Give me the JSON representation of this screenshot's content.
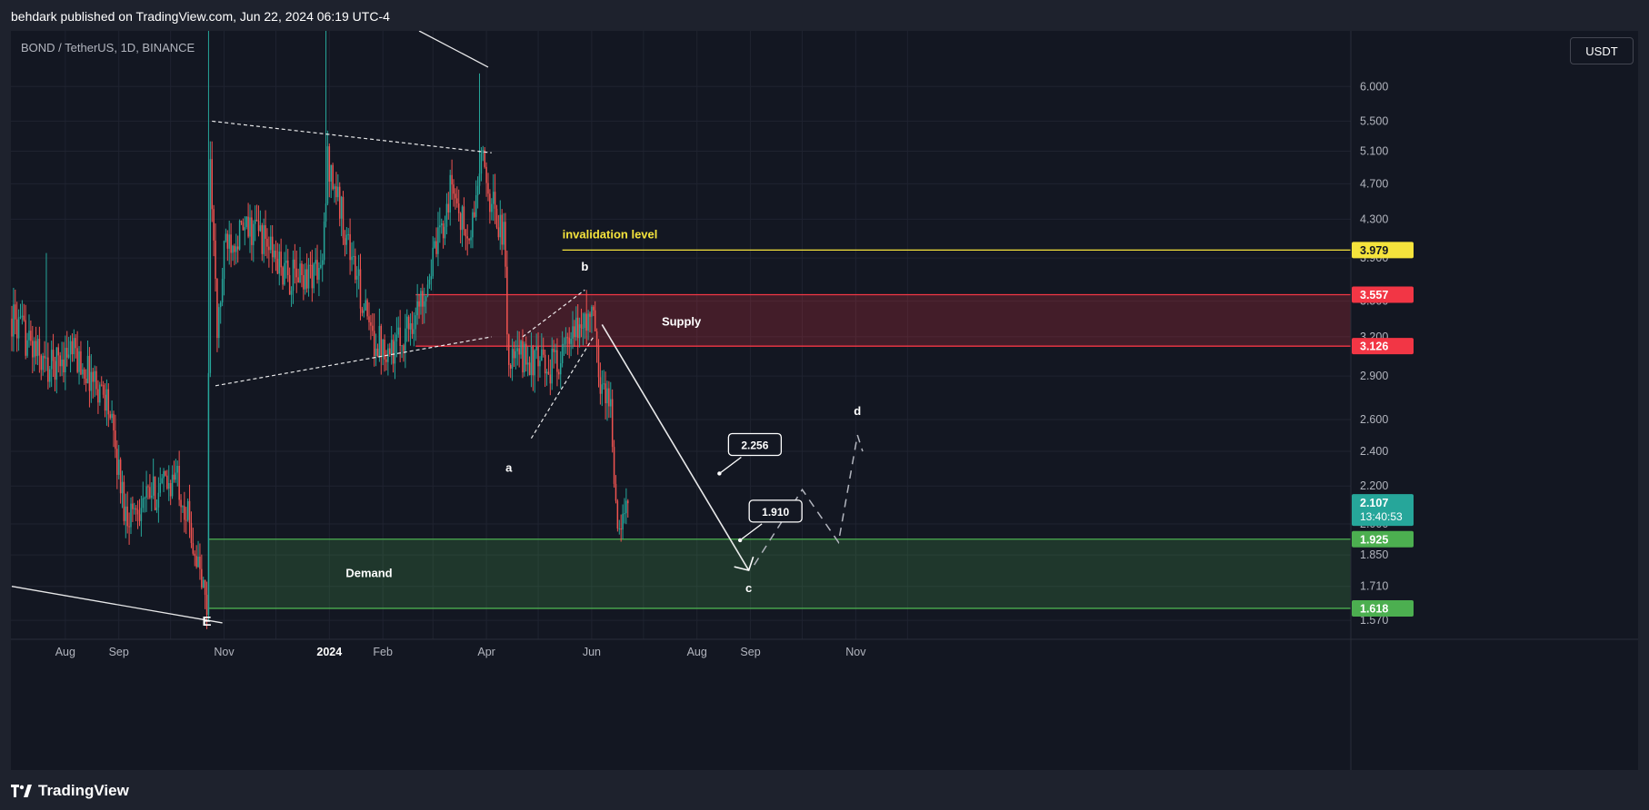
{
  "header": {
    "published": "behdark published on TradingView.com, Jun 22, 2024 06:19 UTC-4"
  },
  "chart_header": {
    "symbol": "BOND / TetherUS, 1D, BINANCE",
    "currency": "USDT"
  },
  "footer": {
    "brand": "TradingView"
  },
  "chart_data": {
    "type": "candlestick",
    "symbol": "BOND / TetherUS",
    "interval": "1D",
    "exchange": "BINANCE",
    "y_scale": "log",
    "ylim": [
      1.47,
      6.9
    ],
    "x_tick_labels": [
      "Aug",
      "Sep",
      "Nov",
      "2024",
      "Feb",
      "Apr",
      "Jun",
      "Aug",
      "Sep",
      "Nov"
    ],
    "y_tick_labels": [
      6.0,
      5.5,
      5.1,
      4.7,
      4.3,
      3.9,
      3.5,
      3.2,
      2.9,
      2.6,
      2.4,
      2.2,
      2.0,
      1.85,
      1.71,
      1.57
    ],
    "price_path_anchors": [
      {
        "date": "2023-07-01",
        "price": 3.35
      },
      {
        "date": "2023-07-22",
        "price": 2.95
      },
      {
        "date": "2023-08-04",
        "price": 3.1
      },
      {
        "date": "2023-08-25",
        "price": 2.75
      },
      {
        "date": "2023-09-05",
        "price": 2.05
      },
      {
        "date": "2023-09-20",
        "price": 2.15
      },
      {
        "date": "2023-10-05",
        "price": 2.25
      },
      {
        "date": "2023-10-12",
        "price": 2.0
      },
      {
        "date": "2023-10-22",
        "price": 1.62
      },
      {
        "date": "2023-10-24",
        "price": 5.1
      },
      {
        "date": "2023-10-28",
        "price": 3.2
      },
      {
        "date": "2023-11-02",
        "price": 4.1
      },
      {
        "date": "2023-11-20",
        "price": 4.2
      },
      {
        "date": "2023-12-08",
        "price": 3.7
      },
      {
        "date": "2023-12-28",
        "price": 3.8
      },
      {
        "date": "2023-12-31",
        "price": 5.0
      },
      {
        "date": "2024-01-05",
        "price": 4.6
      },
      {
        "date": "2024-01-25",
        "price": 3.2
      },
      {
        "date": "2024-02-08",
        "price": 3.1
      },
      {
        "date": "2024-02-22",
        "price": 3.45
      },
      {
        "date": "2024-03-05",
        "price": 4.1
      },
      {
        "date": "2024-03-12",
        "price": 4.7
      },
      {
        "date": "2024-03-22",
        "price": 4.0
      },
      {
        "date": "2024-03-29",
        "price": 5.0
      },
      {
        "date": "2024-04-04",
        "price": 4.5
      },
      {
        "date": "2024-04-11",
        "price": 4.1
      },
      {
        "date": "2024-04-14",
        "price": 3.0
      },
      {
        "date": "2024-04-22",
        "price": 3.05
      },
      {
        "date": "2024-05-07",
        "price": 2.95
      },
      {
        "date": "2024-05-20",
        "price": 3.15
      },
      {
        "date": "2024-05-28",
        "price": 3.35
      },
      {
        "date": "2024-06-02",
        "price": 3.35
      },
      {
        "date": "2024-06-05",
        "price": 2.9
      },
      {
        "date": "2024-06-12",
        "price": 2.7
      },
      {
        "date": "2024-06-16",
        "price": 1.92
      },
      {
        "date": "2024-06-22",
        "price": 2.107
      }
    ],
    "spikes": [
      {
        "date": "2023-07-21",
        "high": 3.95
      },
      {
        "date": "2023-10-23",
        "high": 6.9
      },
      {
        "date": "2023-12-30",
        "high": 6.9
      },
      {
        "date": "2024-03-28",
        "high": 6.2
      },
      {
        "date": "2024-05-29",
        "high": 3.6
      }
    ],
    "zones": [
      {
        "label": "Supply",
        "top": 3.557,
        "bottom": 3.126,
        "color": "#f23645"
      },
      {
        "label": "Demand",
        "top": 1.925,
        "bottom": 1.618,
        "color": "#4caf50"
      }
    ],
    "levels": [
      {
        "label": "invalidation level",
        "price": 3.979,
        "color": "#f5e33c"
      }
    ],
    "price_labels": [
      {
        "value": "3.979",
        "color": "#f5e33c",
        "text_color": "#131722"
      },
      {
        "value": "3.557",
        "color": "#f23645",
        "text_color": "#ffffff"
      },
      {
        "value": "3.126",
        "color": "#f23645",
        "text_color": "#ffffff"
      },
      {
        "value": "1.925",
        "color": "#4caf50",
        "text_color": "#ffffff"
      },
      {
        "value": "1.618",
        "color": "#4caf50",
        "text_color": "#ffffff"
      }
    ],
    "last_price": {
      "value": "2.107",
      "countdown": "13:40:53",
      "color": "#26a69a"
    },
    "callouts": [
      {
        "text": "2.256",
        "date": "2024-08-14",
        "price": 2.27
      },
      {
        "text": "1.910",
        "date": "2024-08-26",
        "price": 1.92
      }
    ],
    "wave_labels": [
      {
        "text": "E",
        "date": "2023-10-22",
        "price": 1.55
      },
      {
        "text": "a",
        "date": "2024-04-14",
        "price": 2.28
      },
      {
        "text": "b",
        "date": "2024-05-28",
        "price": 3.78
      },
      {
        "text": "c",
        "date": "2024-08-31",
        "price": 1.685
      },
      {
        "text": "d",
        "date": "2024-11-02",
        "price": 2.63
      }
    ],
    "projection": [
      {
        "date": "2024-06-07",
        "price": 3.3
      },
      {
        "date": "2024-08-31",
        "price": 1.78
      },
      {
        "date": "2024-10-01",
        "price": 2.18
      },
      {
        "date": "2024-10-22",
        "price": 1.91
      },
      {
        "date": "2024-11-02",
        "price": 2.5
      },
      {
        "date": "2024-11-05",
        "price": 2.4
      }
    ],
    "colors": {
      "up": "#26a69a",
      "down": "#ef5350",
      "background": "#131722",
      "grid": "#1f2330",
      "text": "#b2b5be"
    }
  }
}
